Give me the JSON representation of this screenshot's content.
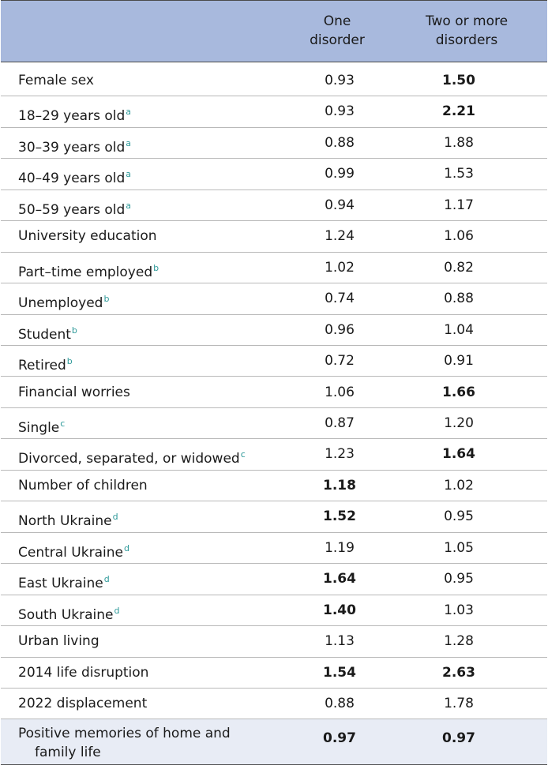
{
  "header": {
    "col1": [
      "One",
      "disorder"
    ],
    "col2": [
      "Two or more",
      "disorders"
    ]
  },
  "rows": [
    {
      "label": "Female sex",
      "sup": "",
      "one": "0.93",
      "one_bold": false,
      "two": "1.50",
      "two_bold": true
    },
    {
      "label": "18–29 years old",
      "sup": "a",
      "one": "0.93",
      "one_bold": false,
      "two": "2.21",
      "two_bold": true
    },
    {
      "label": "30–39 years old",
      "sup": "a",
      "one": "0.88",
      "one_bold": false,
      "two": "1.88",
      "two_bold": false
    },
    {
      "label": "40–49 years old",
      "sup": "a",
      "one": "0.99",
      "one_bold": false,
      "two": "1.53",
      "two_bold": false
    },
    {
      "label": "50–59 years old",
      "sup": "a",
      "one": "0.94",
      "one_bold": false,
      "two": "1.17",
      "two_bold": false
    },
    {
      "label": "University education",
      "sup": "",
      "one": "1.24",
      "one_bold": false,
      "two": "1.06",
      "two_bold": false
    },
    {
      "label": "Part–time employed",
      "sup": "b",
      "one": "1.02",
      "one_bold": false,
      "two": "0.82",
      "two_bold": false
    },
    {
      "label": "Unemployed",
      "sup": "b",
      "one": "0.74",
      "one_bold": false,
      "two": "0.88",
      "two_bold": false
    },
    {
      "label": "Student",
      "sup": "b",
      "one": "0.96",
      "one_bold": false,
      "two": "1.04",
      "two_bold": false
    },
    {
      "label": "Retired",
      "sup": "b",
      "one": "0.72",
      "one_bold": false,
      "two": "0.91",
      "two_bold": false
    },
    {
      "label": "Financial worries",
      "sup": "",
      "one": "1.06",
      "one_bold": false,
      "two": "1.66",
      "two_bold": true
    },
    {
      "label": "Single",
      "sup": "c",
      "one": "0.87",
      "one_bold": false,
      "two": "1.20",
      "two_bold": false
    },
    {
      "label": "Divorced, separated, or widowed",
      "sup": "c",
      "one": "1.23",
      "one_bold": false,
      "two": "1.64",
      "two_bold": true
    },
    {
      "label": "Number of children",
      "sup": "",
      "one": "1.18",
      "one_bold": true,
      "two": "1.02",
      "two_bold": false
    },
    {
      "label": "North Ukraine",
      "sup": "d",
      "one": "1.52",
      "one_bold": true,
      "two": "0.95",
      "two_bold": false
    },
    {
      "label": "Central Ukraine",
      "sup": "d",
      "one": "1.19",
      "one_bold": false,
      "two": "1.05",
      "two_bold": false
    },
    {
      "label": "East Ukraine",
      "sup": "d",
      "one": "1.64",
      "one_bold": true,
      "two": "0.95",
      "two_bold": false
    },
    {
      "label": "South Ukraine",
      "sup": "d",
      "one": "1.40",
      "one_bold": true,
      "two": "1.03",
      "two_bold": false
    },
    {
      "label": "Urban living",
      "sup": "",
      "one": "1.13",
      "one_bold": false,
      "two": "1.28",
      "two_bold": false
    },
    {
      "label": "2014 life disruption",
      "sup": "",
      "one": "1.54",
      "one_bold": true,
      "two": "2.63",
      "two_bold": true
    },
    {
      "label": "2022 displacement",
      "sup": "",
      "one": "0.88",
      "one_bold": false,
      "two": "1.78",
      "two_bold": false
    }
  ],
  "last_row": {
    "label_line1": "Positive memories of home and",
    "label_line2": "family life",
    "one": "0.97",
    "one_bold": true,
    "two": "0.97",
    "two_bold": true
  }
}
